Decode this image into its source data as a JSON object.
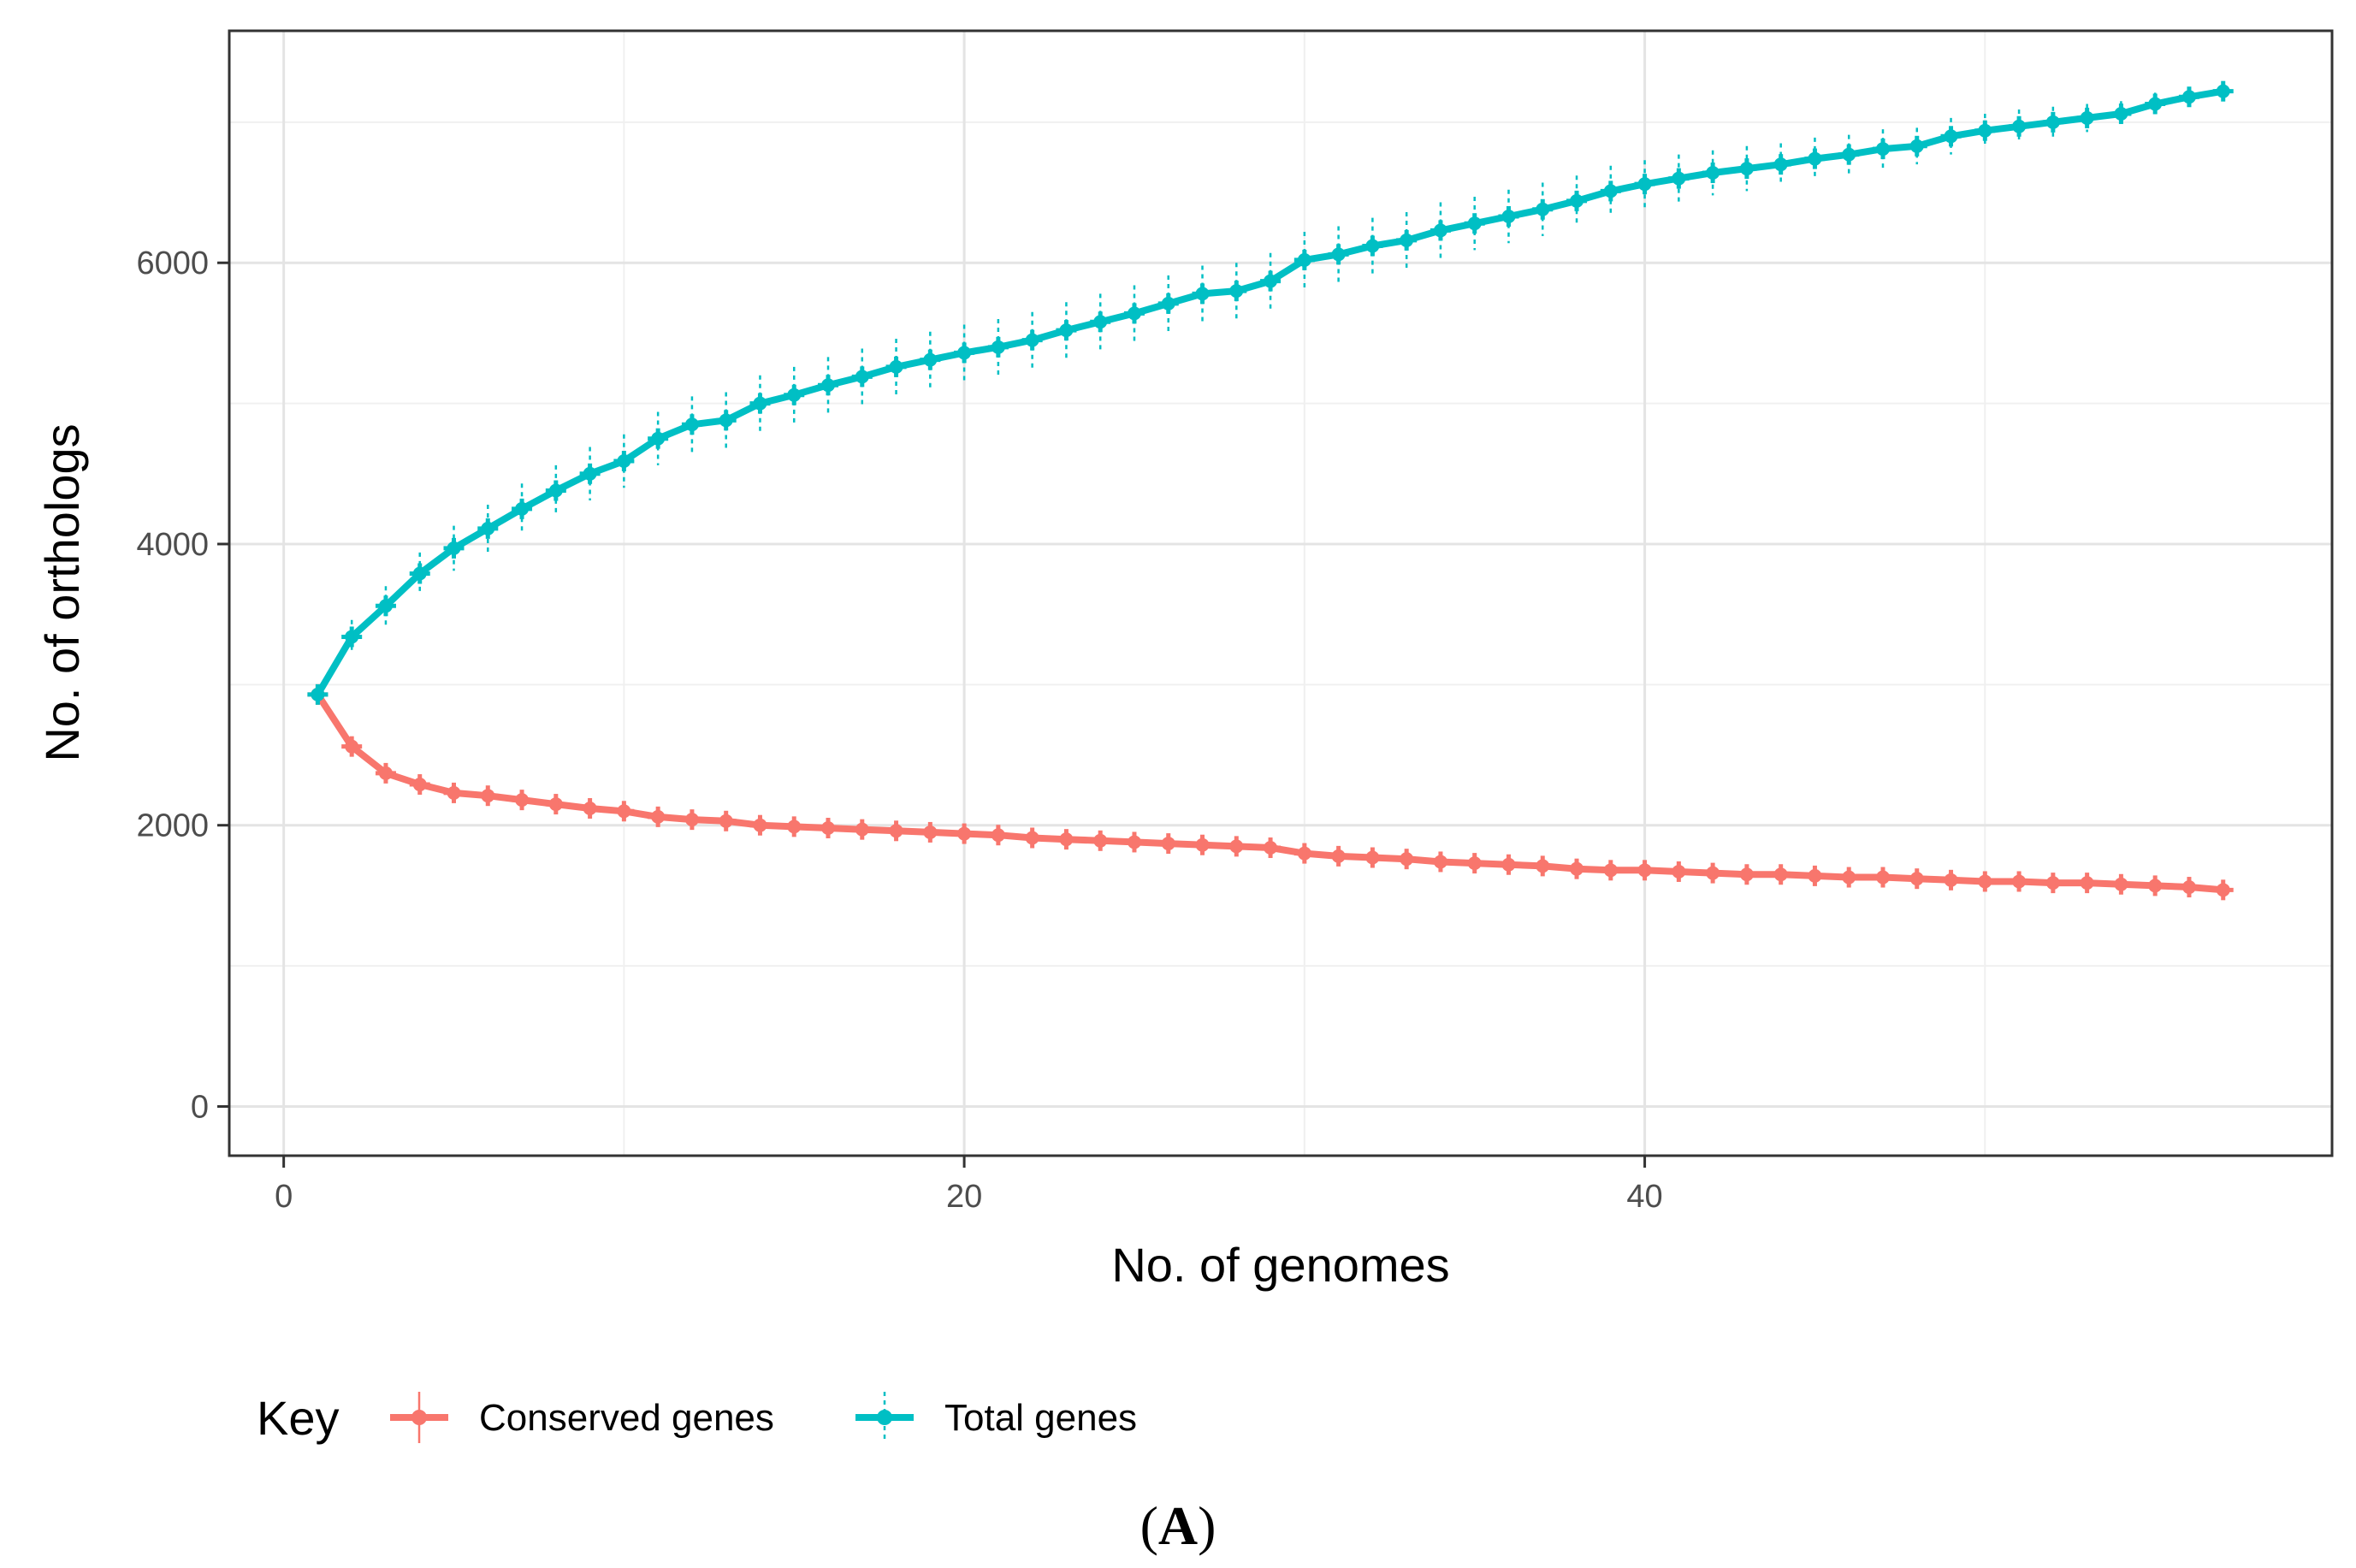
{
  "chart_data": {
    "type": "line",
    "title": "",
    "xlabel": "No. of genomes",
    "ylabel": "No. of orthologs",
    "xlim": [
      -1.6,
      60.2
    ],
    "ylim": [
      -350,
      7650
    ],
    "x_ticks": [
      0,
      20,
      40
    ],
    "y_ticks": [
      0,
      2000,
      4000,
      6000
    ],
    "x_tick_labels": [
      "0",
      "20",
      "40"
    ],
    "y_tick_labels": [
      "0",
      "2000",
      "4000",
      "6000"
    ],
    "grid": true,
    "legend": {
      "title": "Key",
      "position": "bottom-left",
      "entries": [
        "Conserved genes",
        "Total genes"
      ]
    },
    "x": [
      1,
      2,
      3,
      4,
      5,
      6,
      7,
      8,
      9,
      10,
      11,
      12,
      13,
      14,
      15,
      16,
      17,
      18,
      19,
      20,
      21,
      22,
      23,
      24,
      25,
      26,
      27,
      28,
      29,
      30,
      31,
      32,
      33,
      34,
      35,
      36,
      37,
      38,
      39,
      40,
      41,
      42,
      43,
      44,
      45,
      46,
      47,
      48,
      49,
      50,
      51,
      52,
      53,
      54,
      55,
      56,
      57
    ],
    "series": [
      {
        "name": "Conserved genes",
        "color": "#f8766d",
        "values": [
          2930,
          2560,
          2370,
          2290,
          2230,
          2210,
          2180,
          2150,
          2120,
          2100,
          2060,
          2040,
          2030,
          2000,
          1990,
          1980,
          1970,
          1960,
          1950,
          1940,
          1930,
          1910,
          1900,
          1890,
          1880,
          1870,
          1860,
          1850,
          1840,
          1800,
          1780,
          1770,
          1760,
          1740,
          1730,
          1720,
          1710,
          1690,
          1680,
          1680,
          1670,
          1660,
          1650,
          1650,
          1640,
          1630,
          1630,
          1620,
          1610,
          1600,
          1600,
          1590,
          1590,
          1580,
          1570,
          1560,
          1540
        ],
        "error": [
          30,
          60,
          70,
          60,
          60,
          60,
          60,
          60,
          60,
          60,
          60,
          60,
          60,
          60,
          60,
          60,
          60,
          60,
          60,
          60,
          60,
          60,
          60,
          60,
          60,
          60,
          60,
          60,
          60,
          60,
          60,
          60,
          60,
          60,
          60,
          60,
          60,
          60,
          60,
          60,
          60,
          60,
          60,
          60,
          60,
          60,
          60,
          60,
          60,
          60,
          60,
          60,
          60,
          60,
          60,
          60,
          40
        ]
      },
      {
        "name": "Total genes",
        "color": "#00bfc4",
        "values": [
          2930,
          3340,
          3560,
          3790,
          3970,
          4110,
          4250,
          4380,
          4500,
          4590,
          4750,
          4850,
          4880,
          5000,
          5060,
          5130,
          5190,
          5260,
          5310,
          5360,
          5400,
          5450,
          5520,
          5580,
          5640,
          5710,
          5780,
          5800,
          5870,
          6020,
          6060,
          6120,
          6160,
          6230,
          6280,
          6330,
          6380,
          6440,
          6510,
          6560,
          6600,
          6640,
          6670,
          6700,
          6740,
          6770,
          6810,
          6830,
          6900,
          6940,
          6970,
          7000,
          7030,
          7060,
          7130,
          7180,
          7220
        ],
        "error": [
          30,
          120,
          140,
          150,
          160,
          170,
          180,
          180,
          190,
          190,
          190,
          200,
          200,
          200,
          200,
          200,
          200,
          200,
          200,
          200,
          200,
          200,
          200,
          200,
          200,
          200,
          200,
          200,
          200,
          200,
          200,
          200,
          200,
          200,
          190,
          190,
          190,
          180,
          180,
          170,
          170,
          160,
          160,
          150,
          150,
          140,
          140,
          130,
          130,
          120,
          120,
          110,
          100,
          90,
          80,
          60,
          30
        ]
      }
    ]
  },
  "caption": {
    "open": "(",
    "letter": "A",
    "close": ")"
  }
}
